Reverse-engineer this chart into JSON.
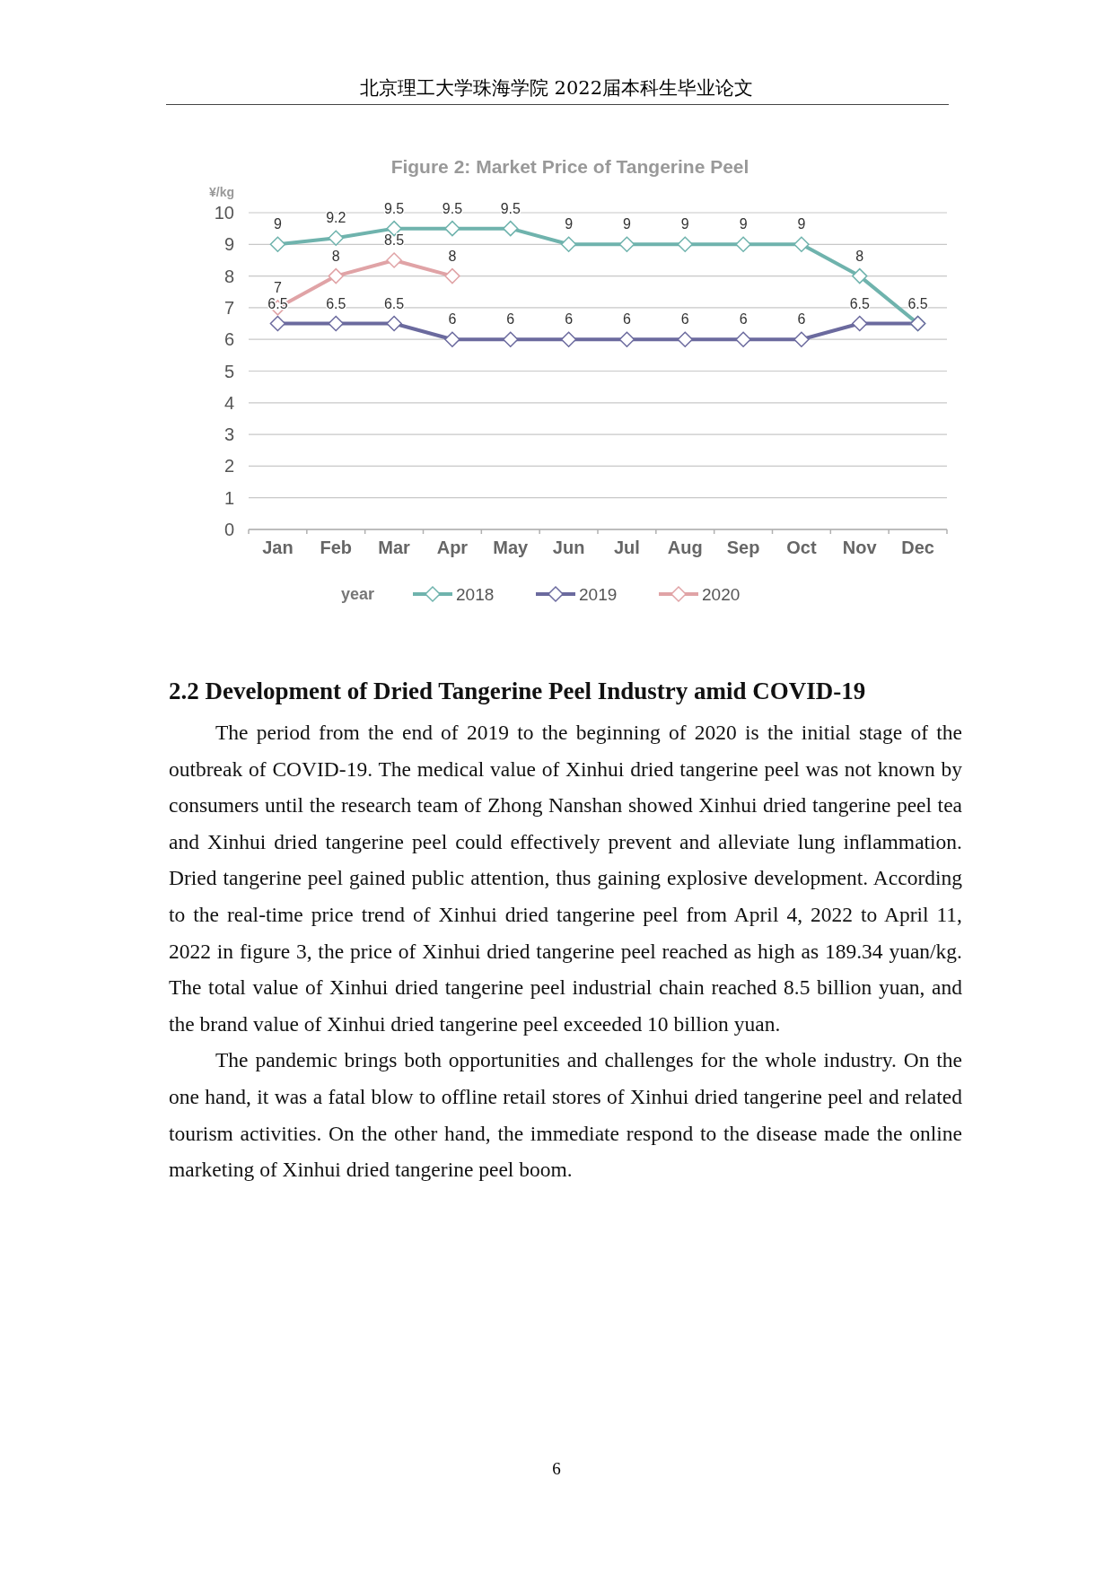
{
  "chart_data": {
    "type": "line",
    "title": "Figure 2: Market Price of Tangerine Peel",
    "ylabel": "¥/kg",
    "legend_title": "year",
    "categories": [
      "Jan",
      "Feb",
      "Mar",
      "Apr",
      "May",
      "Jun",
      "Jul",
      "Aug",
      "Sep",
      "Oct",
      "Nov",
      "Dec"
    ],
    "series": [
      {
        "name": "2018",
        "color": "#6fb3ad",
        "values": [
          9,
          9.2,
          9.5,
          9.5,
          9.5,
          9,
          9,
          9,
          9,
          9,
          8,
          6.5
        ],
        "value_labels": [
          "9",
          "9.2",
          "9.5",
          "9.5",
          "9.5",
          "9",
          "9",
          "9",
          "9",
          "9",
          "8",
          null
        ]
      },
      {
        "name": "2019",
        "color": "#6b6a9e",
        "values": [
          6.5,
          6.5,
          6.5,
          6,
          6,
          6,
          6,
          6,
          6,
          6,
          6.5,
          6.5
        ],
        "value_labels": [
          "6.5",
          "6.5",
          "6.5",
          "6",
          "6",
          "6",
          "6",
          "6",
          "6",
          "6",
          "6.5",
          "6.5"
        ]
      },
      {
        "name": "2020",
        "color": "#e0a3a6",
        "values": [
          7,
          8,
          8.5,
          8,
          null,
          null,
          null,
          null,
          null,
          null,
          null,
          null
        ],
        "value_labels": [
          "7",
          "8",
          "8.5",
          "8",
          null,
          null,
          null,
          null,
          null,
          null,
          null,
          null
        ]
      }
    ],
    "ylim": [
      0,
      10
    ],
    "yticks": [
      0,
      1,
      2,
      3,
      4,
      5,
      6,
      7,
      8,
      9,
      10
    ],
    "grid": "y",
    "legend": "bottom",
    "marker": "diamond",
    "line_style": "solid",
    "annotations": [
      "北京理工大学珠海学院  2022届本科生毕业论文",
      "2.2  Development of Dried Tangerine Peel Industry amid COVID-19",
      "The period from the end of 2019 to the beginning of 2020 is the initial stage of the outbreak of COVID-19. The medical value of Xinhui dried tangerine peel was not known by consumers until the research team of Zhong Nanshan showed Xinhui dried tangerine peel tea and Xinhui dried tangerine peel could effectively prevent and alleviate lung inflammation. Dried tangerine peel gained public attention, thus gaining explosive development. According to the real-time price trend of Xinhui dried tangerine peel from April 4, 2022 to April 11, 2022 in figure 3, the price of Xinhui dried tangerine peel reached as high as 189.34 yuan/kg. The total value of Xinhui dried tangerine peel industrial chain reached 8.5 billion yuan, and the brand value of Xinhui dried tangerine peel exceeded 10 billion yuan.",
      "The pandemic brings both opportunities and challenges for the whole industry. On the one hand, it was a fatal blow to offline retail stores of Xinhui dried tangerine peel and related tourism activities. On the other hand, the immediate respond to the disease made the online marketing of Xinhui dried tangerine peel boom.",
      "6"
    ]
  }
}
